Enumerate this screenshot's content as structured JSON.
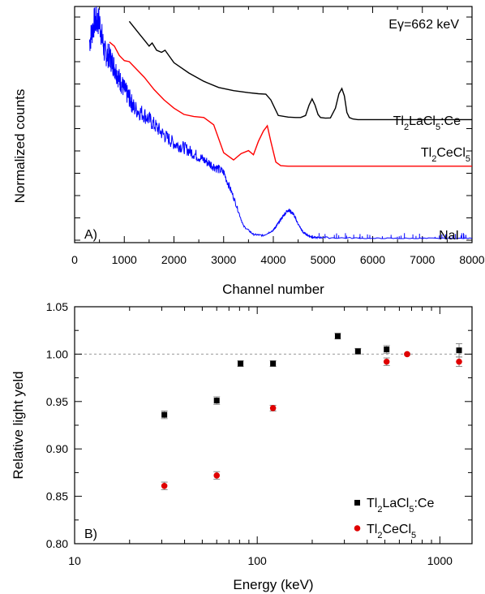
{
  "chart_data": [
    {
      "panel": "A)",
      "type": "line",
      "xlabel": "Channel number",
      "ylabel": "Normalized counts",
      "xlim": [
        0,
        8000
      ],
      "x_ticks": [
        "0",
        "1000",
        "2000",
        "3000",
        "4000",
        "5000",
        "6000",
        "7000",
        "8000"
      ],
      "y_tick_labels": false,
      "annotation": "Eγ=662 keV",
      "series": [
        {
          "name": "Tl2LaCl5:Ce",
          "color": "#000000",
          "x": [
            1100,
            1300,
            1400,
            1500,
            1560,
            1650,
            1750,
            1820,
            2000,
            2300,
            2600,
            2900,
            3200,
            3500,
            3700,
            3850,
            3950,
            4100,
            4300,
            4450,
            4550,
            4650,
            4720,
            4780,
            4840,
            4900,
            4950,
            5050,
            5150,
            5250,
            5320,
            5380,
            5430,
            5480,
            5530,
            5600,
            5700,
            5900,
            6200,
            7000,
            8000
          ],
          "y": [
            1.05,
            0.99,
            0.96,
            0.93,
            0.945,
            0.91,
            0.9,
            0.91,
            0.85,
            0.8,
            0.76,
            0.73,
            0.715,
            0.705,
            0.7,
            0.698,
            0.67,
            0.595,
            0.587,
            0.585,
            0.585,
            0.595,
            0.645,
            0.675,
            0.645,
            0.6,
            0.585,
            0.582,
            0.583,
            0.63,
            0.7,
            0.725,
            0.69,
            0.61,
            0.585,
            0.578,
            0.575,
            0.575,
            0.575,
            0.575,
            0.575
          ]
        },
        {
          "name": "Tl2CeCl5",
          "color": "#ff0000",
          "x": [
            700,
            800,
            900,
            1000,
            1100,
            1200,
            1400,
            1600,
            1800,
            2000,
            2200,
            2400,
            2600,
            2800,
            3000,
            3200,
            3350,
            3500,
            3600,
            3700,
            3800,
            3880,
            3950,
            4050,
            4150,
            4300,
            4500,
            5000,
            6000,
            7000,
            8000
          ],
          "y": [
            0.95,
            0.93,
            0.885,
            0.86,
            0.855,
            0.83,
            0.78,
            0.72,
            0.67,
            0.63,
            0.6,
            0.59,
            0.585,
            0.55,
            0.415,
            0.38,
            0.41,
            0.425,
            0.405,
            0.47,
            0.52,
            0.545,
            0.47,
            0.37,
            0.352,
            0.35,
            0.35,
            0.35,
            0.35,
            0.35,
            0.35
          ]
        },
        {
          "name": "NaI",
          "color": "#0000ff",
          "x": [
            300,
            400,
            500,
            600,
            700,
            800,
            900,
            1000,
            1100,
            1200,
            1400,
            1600,
            1800,
            2000,
            2200,
            2400,
            2600,
            2800,
            3000,
            3200,
            3400,
            3600,
            3800,
            4000,
            4100,
            4200,
            4300,
            4400,
            4500,
            4600,
            4700,
            4800,
            5000,
            6000,
            7000,
            8000
          ],
          "y": [
            0.95,
            1.05,
            1.05,
            0.9,
            0.88,
            0.83,
            0.77,
            0.72,
            0.68,
            0.63,
            0.6,
            0.55,
            0.5,
            0.46,
            0.44,
            0.41,
            0.38,
            0.35,
            0.32,
            0.2,
            0.06,
            0.02,
            0.015,
            0.04,
            0.075,
            0.11,
            0.14,
            0.12,
            0.07,
            0.03,
            0.015,
            0.005,
            0.005,
            0.0,
            0.0,
            0.0
          ]
        }
      ],
      "labels": [
        {
          "text": "Tl2LaCl5:Ce"
        },
        {
          "text": "Tl2CeCl5"
        },
        {
          "text": "NaI"
        }
      ]
    },
    {
      "panel": "B)",
      "type": "scatter",
      "xlabel": "Energy (keV)",
      "ylabel": "Relative light yeld",
      "x_scale": "log",
      "xlim": [
        10,
        1500
      ],
      "ylim": [
        0.8,
        1.05
      ],
      "x_ticks": [
        "10",
        "100",
        "1000"
      ],
      "y_ticks": [
        "0.80",
        "0.85",
        "0.90",
        "0.95",
        "1.00",
        "1.05"
      ],
      "reference_line": 1.0,
      "legend_position": "bottom-right",
      "series": [
        {
          "name": "Tl2LaCl5:Ce",
          "color": "#000000",
          "marker": "square",
          "x": [
            31,
            60,
            81,
            122,
            276,
            356,
            511,
            1274
          ],
          "y": [
            0.936,
            0.951,
            0.99,
            0.99,
            1.019,
            1.003,
            1.005,
            1.004
          ],
          "err": [
            0.004,
            0.004,
            0.003,
            0.003,
            0.003,
            0.003,
            0.004,
            0.007
          ]
        },
        {
          "name": "Tl2CeCl5",
          "color": "#ff0000",
          "marker": "circle",
          "x": [
            31,
            60,
            122,
            511,
            662,
            1274
          ],
          "y": [
            0.861,
            0.872,
            0.943,
            0.992,
            1.0,
            0.992
          ],
          "err": [
            0.004,
            0.004,
            0.003,
            0.004,
            0.001,
            0.005
          ]
        }
      ]
    }
  ]
}
